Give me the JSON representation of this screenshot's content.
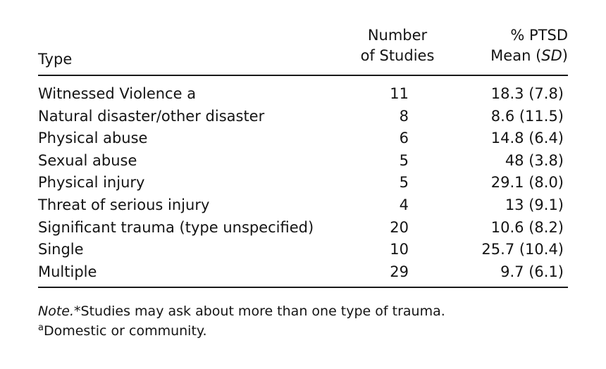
{
  "header": {
    "type": "Type",
    "number_line1": "Number",
    "number_line2": "of Studies",
    "pct_line1": "% PTSD",
    "pct_mean": "Mean",
    "pct_sd_open": "(",
    "pct_sd": "SD",
    "pct_sd_close": ")"
  },
  "rows": [
    {
      "type": "Witnessed Violence a",
      "number": "11",
      "pct": "18.3 (7.8)"
    },
    {
      "type": "Natural disaster/other disaster",
      "number": "8",
      "pct": "8.6 (11.5)"
    },
    {
      "type": "Physical abuse",
      "number": "6",
      "pct": "14.8 (6.4)"
    },
    {
      "type": "Sexual abuse",
      "number": "5",
      "pct": "48 (3.8)"
    },
    {
      "type": "Physical injury",
      "number": "5",
      "pct": "29.1 (8.0)"
    },
    {
      "type": "Threat of serious injury",
      "number": "4",
      "pct": "13 (9.1)"
    },
    {
      "type": "Significant trauma (type unspecified)",
      "number": "20",
      "pct": "10.6 (8.2)"
    },
    {
      "type": "Single",
      "number": "10",
      "pct": "25.7 (10.4)"
    },
    {
      "type": "Multiple",
      "number": "29",
      "pct": "9.7 (6.1)"
    }
  ],
  "notes": {
    "note_label": "Note.",
    "note_text": "*Studies may ask about more than one type of trauma.",
    "footnote_marker": "a",
    "footnote_text": "Domestic or community."
  }
}
